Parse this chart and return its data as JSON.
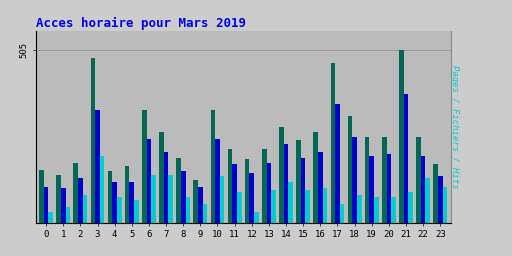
{
  "title": "Acces horaire pour Mars 2019",
  "ylabel_right": "Pages / Fichiers / Hits",
  "hours": [
    0,
    1,
    2,
    3,
    4,
    5,
    6,
    7,
    8,
    9,
    10,
    11,
    12,
    13,
    14,
    15,
    16,
    17,
    18,
    19,
    20,
    21,
    22,
    23
  ],
  "pages": [
    155,
    140,
    175,
    480,
    150,
    165,
    330,
    265,
    190,
    125,
    330,
    215,
    185,
    215,
    280,
    240,
    265,
    465,
    310,
    250,
    250,
    505,
    250,
    170
  ],
  "fichiers": [
    105,
    100,
    130,
    330,
    120,
    120,
    245,
    205,
    150,
    105,
    245,
    170,
    145,
    175,
    230,
    190,
    205,
    345,
    250,
    195,
    200,
    375,
    195,
    135
  ],
  "hits": [
    30,
    45,
    80,
    195,
    75,
    65,
    140,
    140,
    75,
    55,
    135,
    90,
    30,
    95,
    120,
    95,
    100,
    55,
    80,
    75,
    75,
    90,
    130,
    105
  ],
  "color_pages": "#006655",
  "color_fichiers": "#0000CC",
  "color_hits": "#00CCCC",
  "bg_color": "#CCCCCC",
  "plot_bg_color": "#BBBBBB",
  "title_color": "#0000EE",
  "ylabel_color": "#00CCCC",
  "ylim": [
    0,
    560
  ],
  "yticks": [
    505
  ],
  "bar_width": 0.27
}
